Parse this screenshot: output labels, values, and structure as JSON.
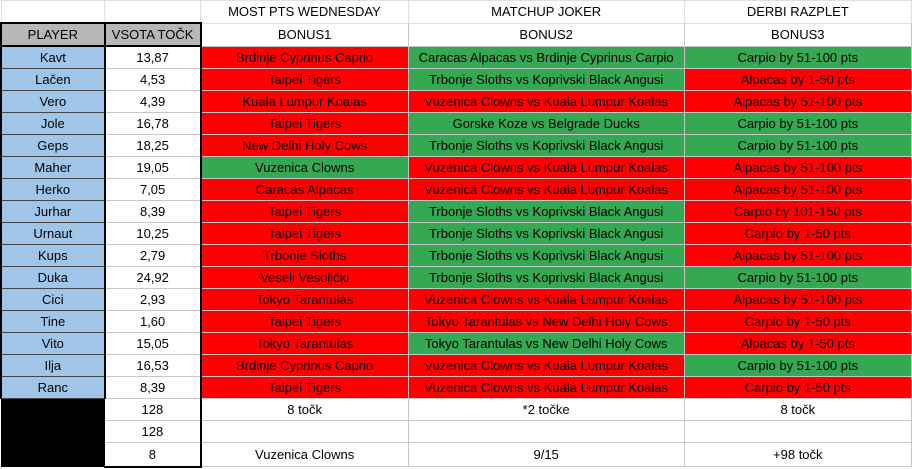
{
  "headers": {
    "top": [
      "",
      "",
      "MOST PTS WEDNESDAY",
      "MATCHUP JOKER",
      "DERBI RAZPLET"
    ],
    "player": "PLAYER",
    "points": "VSOTA TOČK",
    "bonus": [
      "BONUS1",
      "BONUS2",
      "BONUS3"
    ]
  },
  "colors": {
    "red": "#ff0000",
    "green": "#34a853",
    "player_bg": "#9fc5e8",
    "header_bg": "#b7b7b7"
  },
  "rows": [
    {
      "player": "Kavt",
      "points": "13,87",
      "b1": "Brdinje Cyprinus Caprio",
      "b1c": "r",
      "b2": "Caracas Alpacas vs Brdinje Cyprinus Carpio",
      "b2c": "g",
      "b3": "Carpio by 51-100 pts",
      "b3c": "g"
    },
    {
      "player": "Lačen",
      "points": "4,53",
      "b1": "Taipei Tigers",
      "b1c": "r",
      "b2": "Trbonje Sloths vs Koprivski Black Angusi",
      "b2c": "g",
      "b3": "Alpacas by 1-50 pts",
      "b3c": "r"
    },
    {
      "player": "Vero",
      "points": "4,39",
      "b1": "Kuala Lumpur Koalas",
      "b1c": "r",
      "b2": "Vuzenica Clowns vs Kuala Lumpur Koalas",
      "b2c": "r",
      "b3": "Alpacas by 51-100 pts",
      "b3c": "r"
    },
    {
      "player": "Jole",
      "points": "16,78",
      "b1": "Taipei Tigers",
      "b1c": "r",
      "b2": "Gorske Koze vs Belgrade Ducks",
      "b2c": "g",
      "b3": "Carpio by 51-100 pts",
      "b3c": "g"
    },
    {
      "player": "Geps",
      "points": "18,25",
      "b1": "New Delhi Holy Cows",
      "b1c": "r",
      "b2": "Trbonje Sloths vs Koprivski Black Angusi",
      "b2c": "g",
      "b3": "Carpio by 51-100 pts",
      "b3c": "g"
    },
    {
      "player": "Maher",
      "points": "19,05",
      "b1": "Vuzenica Clowns",
      "b1c": "g",
      "b2": "Vuzenica Clowns vs Kuala Lumpur Koalas",
      "b2c": "r",
      "b3": "Alpacas by 51-100 pts",
      "b3c": "r"
    },
    {
      "player": "Herko",
      "points": "7,05",
      "b1": "Caracas Alpacas",
      "b1c": "r",
      "b2": "Vuzenica Clowns vs Kuala Lumpur Koalas",
      "b2c": "r",
      "b3": "Alpacas by 51-100 pts",
      "b3c": "r"
    },
    {
      "player": "Jurhar",
      "points": "8,39",
      "b1": "Taipei Tigers",
      "b1c": "r",
      "b2": "Trbonje Sloths vs Koprivski Black Angusi",
      "b2c": "g",
      "b3": "Carpio by 101-150 pts",
      "b3c": "r"
    },
    {
      "player": "Urnaut",
      "points": "10,25",
      "b1": "Taipei Tigers",
      "b1c": "r",
      "b2": "Trbonje Sloths vs Koprivski Black Angusi",
      "b2c": "g",
      "b3": "Carpio by 1-50 pts",
      "b3c": "r"
    },
    {
      "player": "Kups",
      "points": "2,79",
      "b1": "Trbonje Sloths",
      "b1c": "r",
      "b2": "Trbonje Sloths vs Koprivski Black Angusi",
      "b2c": "g",
      "b3": "Alpacas by 51-100 pts",
      "b3c": "r"
    },
    {
      "player": "Duka",
      "points": "24,92",
      "b1": "Veseli Vesoljčki",
      "b1c": "r",
      "b2": "Trbonje Sloths vs Koprivski Black Angusi",
      "b2c": "g",
      "b3": "Carpio by 51-100 pts",
      "b3c": "g"
    },
    {
      "player": "Cici",
      "points": "2,93",
      "b1": "Tokyo Tarantulas",
      "b1c": "r",
      "b2": "Vuzenica Clowns vs Kuala Lumpur Koalas",
      "b2c": "r",
      "b3": "Alpacas by 51-100 pts",
      "b3c": "r"
    },
    {
      "player": "Tine",
      "points": "1,60",
      "b1": "Taipei Tigers",
      "b1c": "r",
      "b2": "Tokyo Tarantulas vs New Delhi Holy Cows",
      "b2c": "r",
      "b3": "Carpio by 1-50 pts",
      "b3c": "r"
    },
    {
      "player": "Vito",
      "points": "15,05",
      "b1": "Tokyo Tarantulas",
      "b1c": "r",
      "b2": "Tokyo Tarantulas vs New Delhi Holy Cows",
      "b2c": "g",
      "b3": "Alpacas by 1-50 pts",
      "b3c": "r"
    },
    {
      "player": "Ilja",
      "points": "16,53",
      "b1": "Brdinje Cyprinus Caprio",
      "b1c": "r",
      "b2": "Vuzenica Clowns vs Kuala Lumpur Koalas",
      "b2c": "r",
      "b3": "Carpio by 51-100 pts",
      "b3c": "g"
    },
    {
      "player": "Ranc",
      "points": "8,39",
      "b1": "Taipei Tigers",
      "b1c": "r",
      "b2": "Vuzenica Clowns vs Kuala Lumpur Koalas",
      "b2c": "r",
      "b3": "Carpio by 1-50 pts",
      "b3c": "r"
    }
  ],
  "footer": [
    {
      "points": "128",
      "b1": "8 točk",
      "b2": "*2 točke",
      "b3": "8 točk"
    },
    {
      "points": "128",
      "b1": "",
      "b2": "",
      "b3": ""
    },
    {
      "points": "8",
      "b1": "Vuzenica Clowns",
      "b2": "9/15",
      "b3": "+98 točk"
    }
  ]
}
